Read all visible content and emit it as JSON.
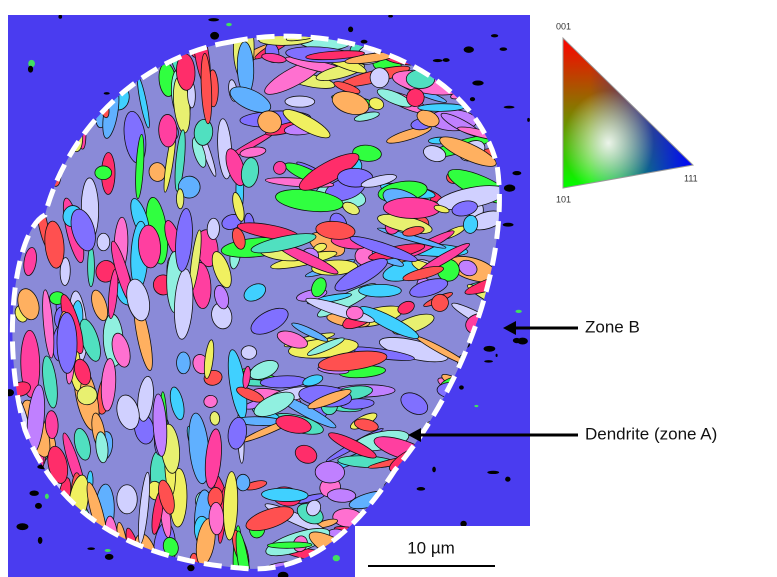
{
  "legend": {
    "top": "001",
    "left": "101",
    "right": "111"
  },
  "annotations": [
    {
      "label": "Zone B"
    },
    {
      "label": "Dendrite (zone A)"
    }
  ],
  "scale_bar": {
    "label": "10 µm"
  }
}
